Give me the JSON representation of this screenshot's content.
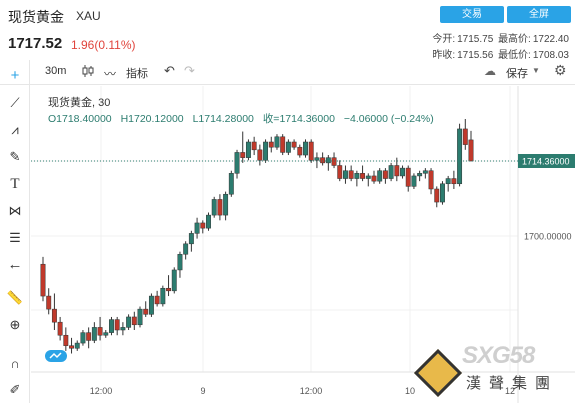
{
  "header": {
    "title": "现货黄金",
    "code": "XAU",
    "price": "1717.52",
    "change": "1.96(0.11%)",
    "trade_button": "交易",
    "fullscreen_button": "全屏",
    "today_open_label": "今开:",
    "today_open": "1715.75",
    "high_label": "最高价:",
    "high": "1722.40",
    "prev_close_label": "昨收:",
    "prev_close": "1715.56",
    "low_label": "最低价:",
    "low": "1708.03"
  },
  "toolbar": {
    "interval": "30m",
    "indicators_label": "指标",
    "save_label": "保存"
  },
  "legend": {
    "symbol": "现货黄金,",
    "interval": "30",
    "open": "O1718.40000",
    "high": "H1720.12000",
    "low": "L1714.28000",
    "close": "收=1714.36000",
    "change": "−4.06000 (−0.24%)"
  },
  "watermark": {
    "brand": "SXG58",
    "cn": "漢聲集團"
  },
  "colors": {
    "up": "#2c7c6f",
    "down": "#c0392b",
    "accent": "#2aa3e6"
  },
  "chart_data": {
    "type": "candlestick",
    "current_price_label": "1714.36000",
    "current_price": 1714.36,
    "y_ticks": [
      1700.0
    ],
    "y_tick_labels": [
      "1700.00000"
    ],
    "x_tick_labels": [
      "12:00",
      "9",
      "12:00",
      "10",
      "12"
    ],
    "grid": true,
    "candles": [
      [
        1694.6,
        1696.0,
        1687.5,
        1688.5
      ],
      [
        1688.5,
        1690.0,
        1685.0,
        1686.0
      ],
      [
        1686.0,
        1689.0,
        1682.0,
        1683.5
      ],
      [
        1683.5,
        1684.5,
        1680.0,
        1681.0
      ],
      [
        1681.0,
        1682.5,
        1678.0,
        1679.0
      ],
      [
        1679.0,
        1680.5,
        1677.5,
        1678.5
      ],
      [
        1678.5,
        1680.0,
        1678.0,
        1679.5
      ],
      [
        1679.5,
        1682.0,
        1679.0,
        1681.5
      ],
      [
        1681.5,
        1682.5,
        1678.5,
        1680.0
      ],
      [
        1680.0,
        1683.5,
        1679.5,
        1682.5
      ],
      [
        1682.5,
        1684.5,
        1680.0,
        1681.0
      ],
      [
        1681.0,
        1682.0,
        1680.5,
        1681.5
      ],
      [
        1681.5,
        1684.5,
        1681.0,
        1684.0
      ],
      [
        1684.0,
        1684.5,
        1681.0,
        1682.0
      ],
      [
        1682.0,
        1683.5,
        1681.0,
        1682.5
      ],
      [
        1682.5,
        1685.0,
        1682.0,
        1684.5
      ],
      [
        1684.5,
        1685.5,
        1682.0,
        1683.0
      ],
      [
        1683.0,
        1686.5,
        1682.5,
        1686.0
      ],
      [
        1686.0,
        1687.5,
        1684.5,
        1685.0
      ],
      [
        1685.0,
        1689.0,
        1684.5,
        1688.5
      ],
      [
        1688.5,
        1689.5,
        1686.5,
        1687.0
      ],
      [
        1687.0,
        1690.5,
        1686.5,
        1690.0
      ],
      [
        1690.0,
        1692.5,
        1688.5,
        1689.5
      ],
      [
        1689.5,
        1694.0,
        1689.0,
        1693.5
      ],
      [
        1693.5,
        1697.0,
        1692.0,
        1696.5
      ],
      [
        1696.5,
        1699.0,
        1695.5,
        1698.5
      ],
      [
        1698.5,
        1701.0,
        1697.0,
        1700.5
      ],
      [
        1700.5,
        1703.5,
        1699.5,
        1702.5
      ],
      [
        1702.5,
        1703.0,
        1700.5,
        1701.5
      ],
      [
        1701.5,
        1704.5,
        1701.0,
        1704.0
      ],
      [
        1704.0,
        1707.5,
        1703.5,
        1707.0
      ],
      [
        1707.0,
        1708.0,
        1703.0,
        1704.0
      ],
      [
        1704.0,
        1708.5,
        1703.0,
        1708.0
      ],
      [
        1708.0,
        1712.5,
        1707.5,
        1712.0
      ],
      [
        1712.0,
        1716.5,
        1711.0,
        1716.0
      ],
      [
        1716.0,
        1720.0,
        1714.0,
        1715.0
      ],
      [
        1715.0,
        1718.5,
        1714.5,
        1718.0
      ],
      [
        1718.0,
        1719.0,
        1715.5,
        1716.5
      ],
      [
        1716.5,
        1717.5,
        1713.5,
        1714.5
      ],
      [
        1714.5,
        1718.5,
        1714.0,
        1718.0
      ],
      [
        1718.0,
        1719.0,
        1716.0,
        1717.0
      ],
      [
        1717.0,
        1719.5,
        1716.5,
        1719.0
      ],
      [
        1719.0,
        1719.5,
        1715.5,
        1716.0
      ],
      [
        1716.0,
        1718.5,
        1715.5,
        1718.0
      ],
      [
        1718.0,
        1718.5,
        1716.5,
        1717.0
      ],
      [
        1717.0,
        1717.5,
        1715.0,
        1715.5
      ],
      [
        1715.5,
        1718.5,
        1715.0,
        1718.0
      ],
      [
        1718.0,
        1718.5,
        1714.0,
        1714.5
      ],
      [
        1714.5,
        1716.0,
        1713.0,
        1715.0
      ],
      [
        1715.0,
        1716.0,
        1713.5,
        1714.0
      ],
      [
        1714.0,
        1715.5,
        1712.5,
        1715.0
      ],
      [
        1715.0,
        1716.0,
        1713.0,
        1713.5
      ],
      [
        1713.5,
        1714.5,
        1710.5,
        1711.0
      ],
      [
        1711.0,
        1713.5,
        1710.0,
        1712.5
      ],
      [
        1712.5,
        1713.5,
        1710.5,
        1711.0
      ],
      [
        1711.0,
        1712.5,
        1709.5,
        1712.0
      ],
      [
        1712.0,
        1713.5,
        1710.5,
        1711.0
      ],
      [
        1711.0,
        1712.0,
        1709.5,
        1711.5
      ],
      [
        1711.5,
        1712.5,
        1710.0,
        1710.5
      ],
      [
        1710.5,
        1713.0,
        1710.0,
        1712.5
      ],
      [
        1712.5,
        1713.0,
        1710.0,
        1711.0
      ],
      [
        1711.0,
        1714.0,
        1710.5,
        1713.5
      ],
      [
        1713.5,
        1715.0,
        1710.5,
        1711.5
      ],
      [
        1711.5,
        1713.5,
        1711.0,
        1713.0
      ],
      [
        1713.0,
        1713.5,
        1708.5,
        1709.5
      ],
      [
        1709.5,
        1712.0,
        1709.0,
        1711.5
      ],
      [
        1711.5,
        1712.5,
        1710.5,
        1712.0
      ],
      [
        1712.0,
        1713.0,
        1711.0,
        1712.5
      ],
      [
        1712.5,
        1713.0,
        1708.0,
        1709.0
      ],
      [
        1709.0,
        1709.5,
        1705.5,
        1706.5
      ],
      [
        1706.5,
        1710.5,
        1706.0,
        1710.0
      ],
      [
        1710.0,
        1711.5,
        1708.5,
        1711.0
      ],
      [
        1711.0,
        1712.5,
        1709.0,
        1710.0
      ],
      [
        1710.0,
        1721.5,
        1709.5,
        1720.5
      ],
      [
        1720.5,
        1722.4,
        1716.5,
        1717.5
      ],
      [
        1718.4,
        1720.12,
        1714.28,
        1714.36
      ]
    ]
  }
}
